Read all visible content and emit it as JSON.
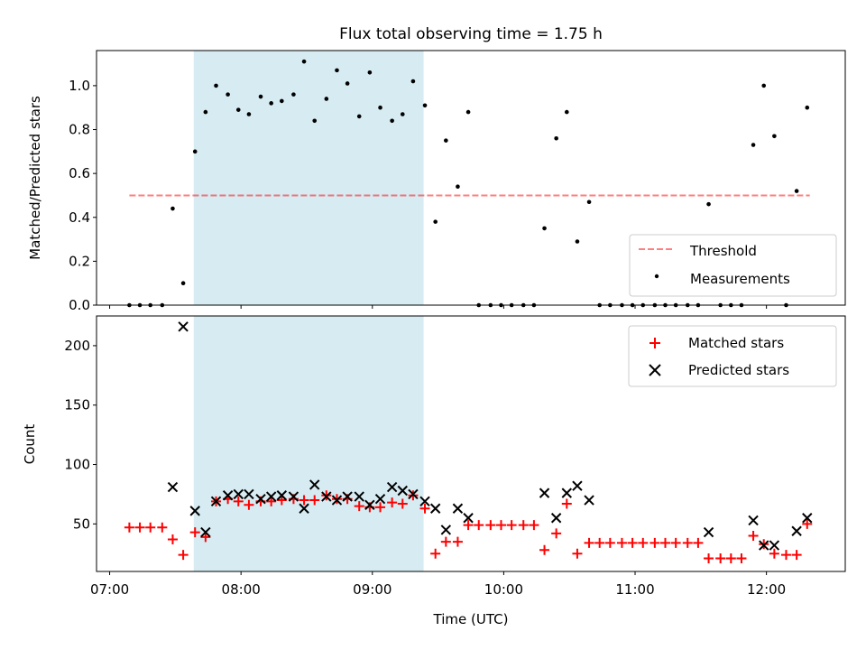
{
  "title": "Flux total observing time = 1.75 h",
  "colors": {
    "highlight": "#add8e6",
    "threshold": "#ff0000",
    "measurement": "#000000",
    "matched": "#ff0000",
    "predicted": "#000000"
  },
  "chart_data": [
    {
      "type": "scatter",
      "ylabel": "Matched/Predicted stars",
      "xlim": [
        6.9,
        12.6
      ],
      "ylim": [
        0,
        1.16
      ],
      "yticks": [
        0.0,
        0.2,
        0.4,
        0.6,
        0.8,
        1.0
      ],
      "ytick_labels": [
        "0.0",
        "0.2",
        "0.4",
        "0.6",
        "0.8",
        "1.0"
      ],
      "highlight_span": [
        7.64,
        9.39
      ],
      "legend_position": "lower-right",
      "threshold": {
        "name": "Threshold",
        "value": 0.5,
        "x_range": [
          7.15,
          12.33
        ]
      },
      "series": [
        {
          "name": "Measurements",
          "x": [
            7.15,
            7.23,
            7.31,
            7.4,
            7.48,
            7.56,
            7.65,
            7.73,
            7.81,
            7.9,
            7.98,
            8.06,
            8.15,
            8.23,
            8.31,
            8.4,
            8.48,
            8.56,
            8.65,
            8.73,
            8.81,
            8.9,
            8.98,
            9.06,
            9.15,
            9.23,
            9.31,
            9.4,
            9.48,
            9.56,
            9.65,
            9.73,
            9.81,
            9.9,
            9.98,
            10.06,
            10.15,
            10.23,
            10.31,
            10.4,
            10.48,
            10.56,
            10.65,
            10.73,
            10.81,
            10.9,
            10.98,
            11.06,
            11.15,
            11.23,
            11.31,
            11.4,
            11.48,
            11.56,
            11.65,
            11.73,
            11.81,
            11.9,
            11.98,
            12.06,
            12.15,
            12.23,
            12.31
          ],
          "y": [
            0,
            0,
            0,
            0,
            0.44,
            0.1,
            0.7,
            0.88,
            1.0,
            0.96,
            0.89,
            0.87,
            0.95,
            0.92,
            0.93,
            0.96,
            1.11,
            0.84,
            0.94,
            1.07,
            1.01,
            0.86,
            1.06,
            0.9,
            0.84,
            0.87,
            1.02,
            0.91,
            0.38,
            0.75,
            0.54,
            0.88,
            0,
            0,
            0,
            0,
            0,
            0,
            0.35,
            0.76,
            0.88,
            0.29,
            0.47,
            0,
            0,
            0,
            0,
            0,
            0,
            0,
            0,
            0,
            0,
            0.46,
            0,
            0,
            0,
            0.73,
            1.0,
            0.77,
            0,
            0.52,
            0.9
          ]
        }
      ]
    },
    {
      "type": "scatter",
      "xlabel": "Time (UTC)",
      "ylabel": "Count",
      "xlim": [
        6.9,
        12.6
      ],
      "ylim": [
        10,
        225
      ],
      "xticks": [
        7,
        8,
        9,
        10,
        11,
        12
      ],
      "xtick_labels": [
        "07:00",
        "08:00",
        "09:00",
        "10:00",
        "11:00",
        "12:00"
      ],
      "yticks": [
        50,
        100,
        150,
        200
      ],
      "ytick_labels": [
        "50",
        "100",
        "150",
        "200"
      ],
      "highlight_span": [
        7.64,
        9.39
      ],
      "legend_position": "upper-right",
      "series": [
        {
          "name": "Matched stars",
          "marker": "plus",
          "x": [
            7.15,
            7.23,
            7.31,
            7.4,
            7.48,
            7.56,
            7.65,
            7.73,
            7.81,
            7.9,
            7.98,
            8.06,
            8.15,
            8.23,
            8.31,
            8.4,
            8.48,
            8.56,
            8.65,
            8.73,
            8.81,
            8.9,
            8.98,
            9.06,
            9.15,
            9.23,
            9.31,
            9.4,
            9.48,
            9.56,
            9.65,
            9.73,
            9.81,
            9.9,
            9.98,
            10.06,
            10.15,
            10.23,
            10.31,
            10.4,
            10.48,
            10.56,
            10.65,
            10.73,
            10.81,
            10.9,
            10.98,
            11.06,
            11.15,
            11.23,
            11.31,
            11.4,
            11.48,
            11.56,
            11.65,
            11.73,
            11.81,
            11.9,
            11.98,
            12.06,
            12.15,
            12.23,
            12.31
          ],
          "y": [
            47,
            47,
            47,
            47,
            37,
            24,
            43,
            39,
            69,
            71,
            69,
            66,
            69,
            69,
            70,
            71,
            70,
            70,
            74,
            71,
            71,
            65,
            64,
            64,
            68,
            67,
            74,
            63,
            25,
            35,
            35,
            49,
            49,
            49,
            49,
            49,
            49,
            49,
            28,
            42,
            67,
            25,
            34,
            34,
            34,
            34,
            34,
            34,
            34,
            34,
            34,
            34,
            34,
            21,
            21,
            21,
            21,
            40,
            33,
            25,
            24,
            24,
            50
          ]
        },
        {
          "name": "Predicted stars",
          "marker": "x",
          "x": [
            7.48,
            7.56,
            7.65,
            7.73,
            7.81,
            7.9,
            7.98,
            8.06,
            8.15,
            8.23,
            8.31,
            8.4,
            8.48,
            8.56,
            8.65,
            8.73,
            8.81,
            8.9,
            8.98,
            9.06,
            9.15,
            9.23,
            9.31,
            9.4,
            9.48,
            9.56,
            9.65,
            9.73,
            10.31,
            10.4,
            10.48,
            10.56,
            10.65,
            11.56,
            11.9,
            11.98,
            12.06,
            12.23,
            12.31
          ],
          "y": [
            81,
            216,
            61,
            43,
            69,
            74,
            75,
            75,
            71,
            73,
            74,
            73,
            63,
            83,
            73,
            70,
            73,
            73,
            66,
            71,
            81,
            78,
            75,
            69,
            63,
            45,
            63,
            55,
            76,
            55,
            76,
            82,
            70,
            43,
            53,
            32,
            32,
            44,
            55
          ]
        }
      ]
    }
  ]
}
